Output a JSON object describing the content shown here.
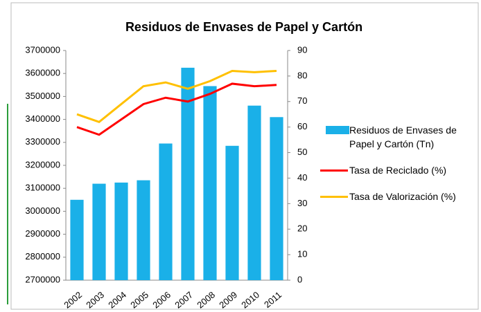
{
  "chart_data": {
    "type": "bar_line",
    "title": "Residuos de Envases de Papel y Cartón",
    "categories": [
      "2002",
      "2003",
      "2004",
      "2005",
      "2006",
      "2007",
      "2008",
      "2009",
      "2010",
      "2011"
    ],
    "series": [
      {
        "name": "Residuos de Envases de Papel y Cartón (Tn)",
        "type": "bar",
        "color": "#1ab0e8",
        "axis": "y",
        "values": [
          3050000,
          3120000,
          3125000,
          3135000,
          3295000,
          3625000,
          3545000,
          3285000,
          3460000,
          3410000
        ]
      },
      {
        "name": "Tasa de Reciclado (%)",
        "type": "line",
        "color": "#ff0000",
        "axis": "y2",
        "values": [
          60,
          57,
          63,
          69,
          71.5,
          70,
          73,
          77,
          76,
          76.5
        ]
      },
      {
        "name": "Tasa de Valorización (%)",
        "type": "line",
        "color": "#ffc000",
        "axis": "y2",
        "values": [
          65,
          62,
          69,
          76,
          77.5,
          75,
          78,
          82,
          81.5,
          82
        ]
      }
    ],
    "ylim": [
      2700000,
      3700000
    ],
    "yticks": [
      2700000,
      2800000,
      2900000,
      3000000,
      3100000,
      3200000,
      3300000,
      3400000,
      3500000,
      3600000,
      3700000
    ],
    "y2lim": [
      0,
      90
    ],
    "y2ticks": [
      0,
      10,
      20,
      30,
      40,
      50,
      60,
      70,
      80,
      90
    ],
    "legend": "right"
  }
}
